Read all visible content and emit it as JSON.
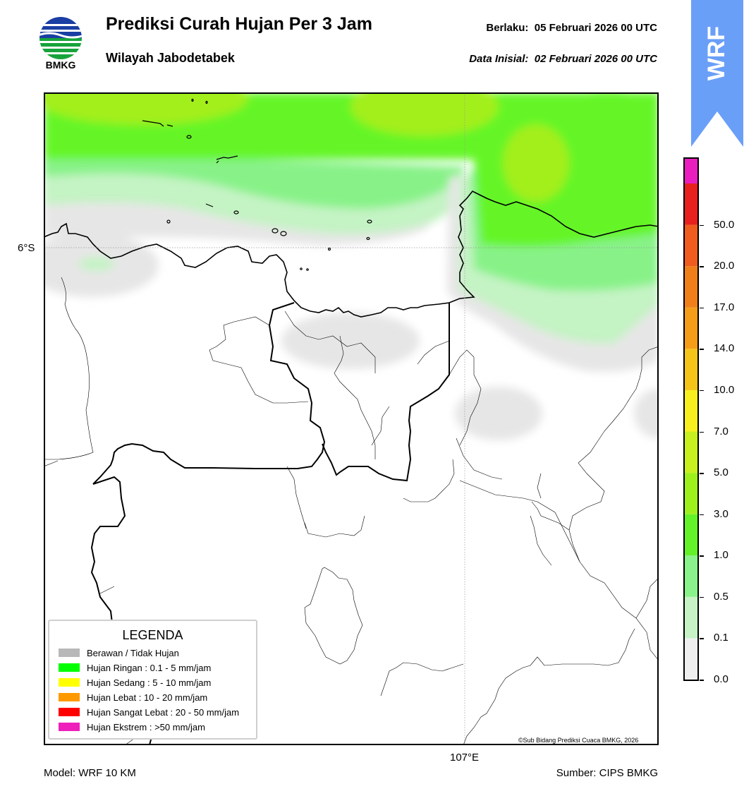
{
  "header": {
    "logo_text": "BMKG",
    "title": "Prediksi Curah Hujan Per 3 Jam",
    "subtitle": "Wilayah Jabodetabek",
    "valid_label": "Berlaku:",
    "valid_value": "05 Februari 2026 00 UTC",
    "initial_label": "Data Inisial:",
    "initial_value": "02 Februari 2026 00 UTC"
  },
  "ribbon": {
    "text": "WRF",
    "color": "#6a9ff8"
  },
  "map": {
    "lat_label": "6°S",
    "lon_label": "107°E",
    "credit": "©Sub Bidang Prediksi Cuaca BMKG, 2026"
  },
  "legend": {
    "title": "LEGENDA",
    "items": [
      {
        "label": "Berawan / Tidak Hujan",
        "color": "#b8b8b8"
      },
      {
        "label": "Hujan Ringan : 0.1 - 5 mm/jam",
        "color": "#00ff00"
      },
      {
        "label": "Hujan Sedang : 5 - 10 mm/jam",
        "color": "#ffff00"
      },
      {
        "label": "Hujan Lebat : 10 - 20 mm/jam",
        "color": "#ff9900"
      },
      {
        "label": "Hujan Sangat Lebat : 20 - 50 mm/jam",
        "color": "#ff0000"
      },
      {
        "label": "Hujan Ekstrem : >50 mm/jam",
        "color": "#ee1fbb"
      }
    ]
  },
  "colorbar": {
    "ticks": [
      "0.0",
      "0.1",
      "0.5",
      "1.0",
      "3.0",
      "5.0",
      "7.0",
      "10.0",
      "14.0",
      "17.0",
      "20.0",
      "50.0"
    ],
    "colors": [
      "#efefef",
      "#c6f2c6",
      "#8af28a",
      "#63f227",
      "#9df01c",
      "#c8f01e",
      "#f7f01e",
      "#f5c419",
      "#f59d18",
      "#f07f1a",
      "#f05c1e",
      "#e8201e",
      "#ea1ebe"
    ]
  },
  "footer": {
    "model": "Model: WRF 10 KM",
    "source": "Sumber: CIPS BMKG"
  }
}
